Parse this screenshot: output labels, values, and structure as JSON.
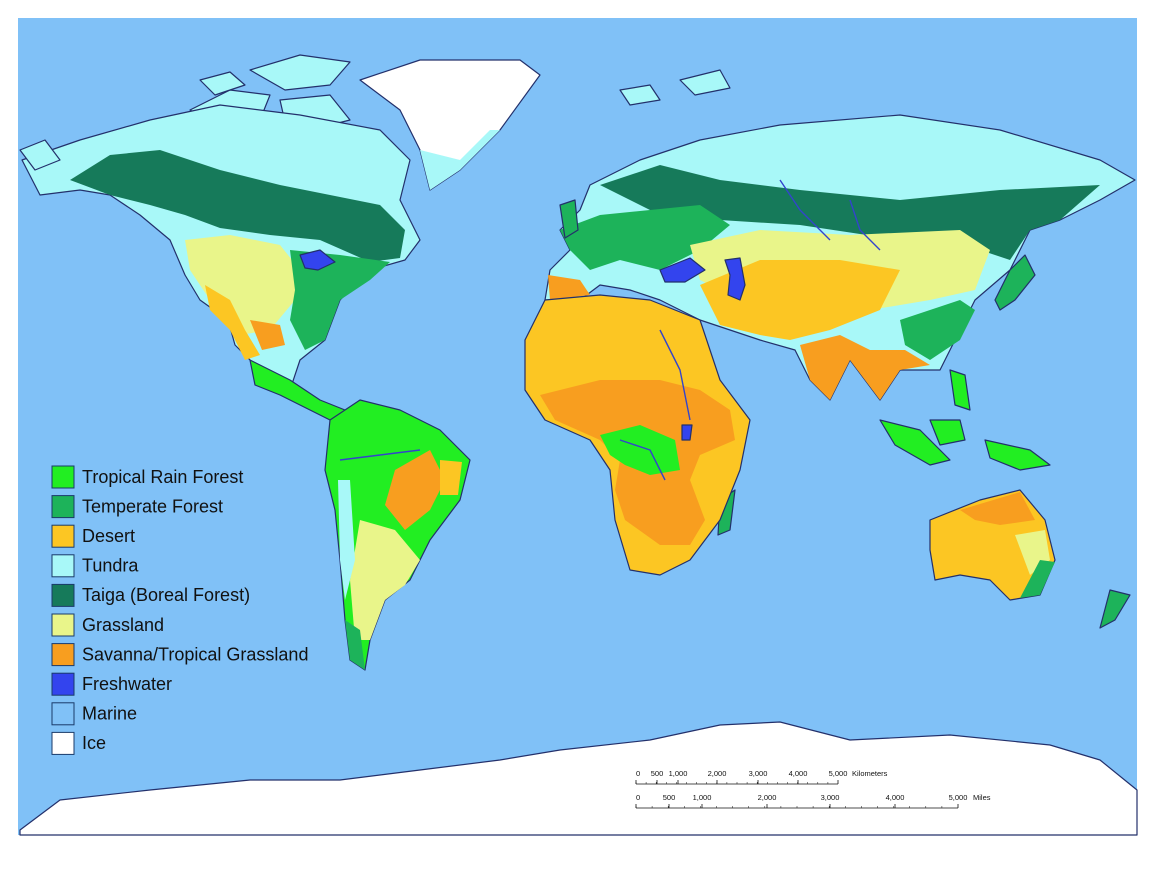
{
  "legend": {
    "items": [
      {
        "label": "Tropical Rain Forest",
        "color": "#22ee22"
      },
      {
        "label": "Temperate Forest",
        "color": "#1db35a"
      },
      {
        "label": "Desert",
        "color": "#fcc623"
      },
      {
        "label": "Tundra",
        "color": "#a8f8f8"
      },
      {
        "label": "Taiga (Boreal Forest)",
        "color": "#167a5a"
      },
      {
        "label": "Grassland",
        "color": "#e9f58a"
      },
      {
        "label": "Savanna/Tropical Grassland",
        "color": "#f89e1f"
      },
      {
        "label": "Freshwater",
        "color": "#3344ee"
      },
      {
        "label": "Marine",
        "color": "#80c1f7"
      },
      {
        "label": "Ice",
        "color": "#ffffff"
      }
    ]
  },
  "scale_bar": {
    "kilometers": {
      "ticks": [
        "0",
        "500",
        "1,000",
        "2,000",
        "3,000",
        "4,000",
        "5,000"
      ],
      "unit": "Kilometers"
    },
    "miles": {
      "ticks": [
        "0",
        "500",
        "1,000",
        "2,000",
        "3,000",
        "4,000",
        "5,000"
      ],
      "unit": "Miles"
    }
  }
}
